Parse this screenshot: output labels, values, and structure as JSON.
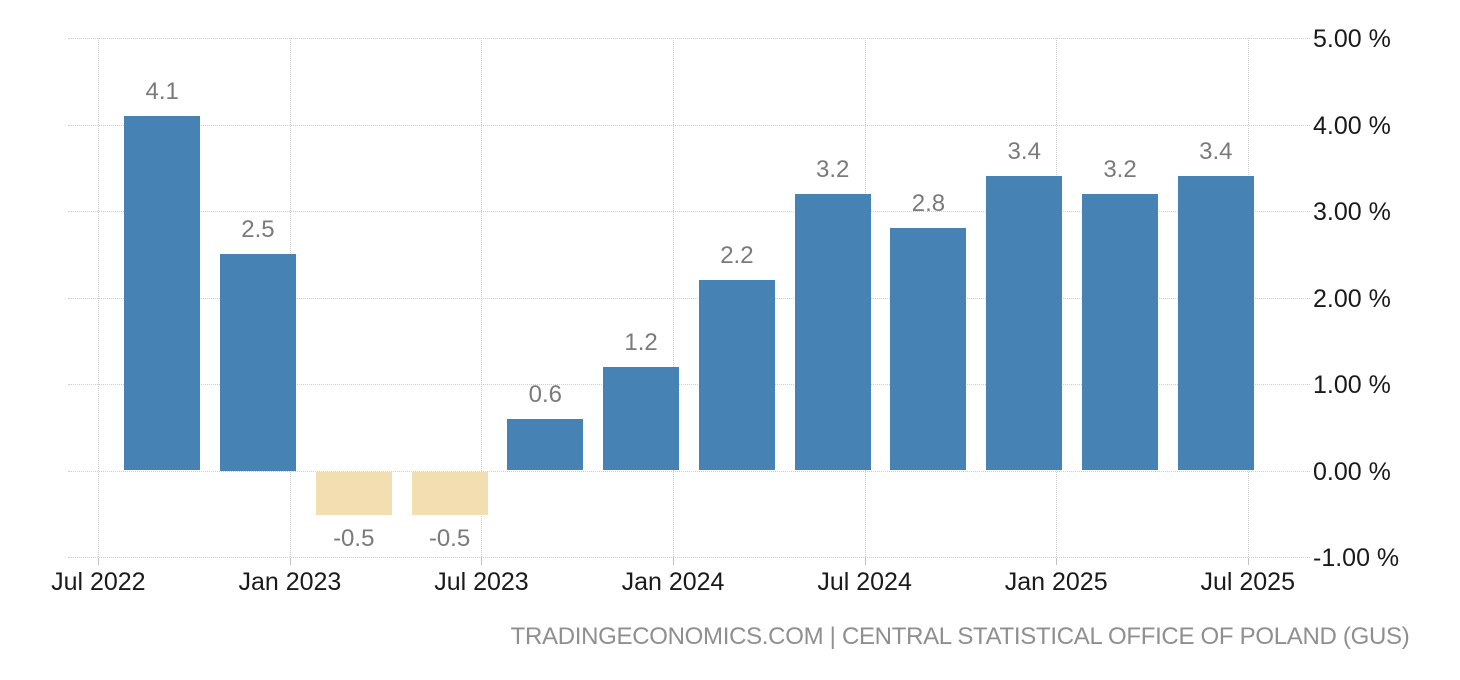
{
  "chart_data": {
    "type": "bar",
    "title": "",
    "legend": "none",
    "grid": "dotted",
    "x_axis": {
      "unit": "months_since_first_tick",
      "range": [
        -0.95,
        37.95
      ],
      "ticks": [
        {
          "m": 0,
          "label": "Jul 2022"
        },
        {
          "m": 6,
          "label": "Jan 2023"
        },
        {
          "m": 12,
          "label": "Jul 2023"
        },
        {
          "m": 18,
          "label": "Jan 2024"
        },
        {
          "m": 24,
          "label": "Jul 2024"
        },
        {
          "m": 30,
          "label": "Jan 2025"
        },
        {
          "m": 36,
          "label": "Jul 2025"
        }
      ]
    },
    "y_axis": {
      "range": [
        -1,
        5
      ],
      "ticks": [
        {
          "v": 5,
          "label": "5.00 %"
        },
        {
          "v": 4,
          "label": "4.00 %"
        },
        {
          "v": 3,
          "label": "3.00 %"
        },
        {
          "v": 2,
          "label": "2.00 %"
        },
        {
          "v": 1,
          "label": "1.00 %"
        },
        {
          "v": 0,
          "label": "0.00 %"
        },
        {
          "v": -1,
          "label": "-1.00 %"
        }
      ]
    },
    "bars": [
      {
        "m": 2,
        "value": 4.1,
        "label": "4.1"
      },
      {
        "m": 5,
        "value": 2.5,
        "label": "2.5"
      },
      {
        "m": 8,
        "value": -0.5,
        "label": "-0.5"
      },
      {
        "m": 11,
        "value": -0.5,
        "label": "-0.5"
      },
      {
        "m": 14,
        "value": 0.6,
        "label": "0.6"
      },
      {
        "m": 17,
        "value": 1.2,
        "label": "1.2"
      },
      {
        "m": 20,
        "value": 2.2,
        "label": "2.2"
      },
      {
        "m": 23,
        "value": 3.2,
        "label": "3.2"
      },
      {
        "m": 26,
        "value": 2.8,
        "label": "2.8"
      },
      {
        "m": 29,
        "value": 3.4,
        "label": "3.4"
      },
      {
        "m": 32,
        "value": 3.2,
        "label": "3.2"
      },
      {
        "m": 35,
        "value": 3.4,
        "label": "3.4"
      }
    ],
    "colors": {
      "positive_bar": "#4682b4",
      "negative_bar": "#f2deb0",
      "value_label": "#7a7a7a",
      "axis_label": "#1a1a1a",
      "gridline": "#cccccc"
    }
  },
  "footer": {
    "attribution": "TRADINGECONOMICS.COM | CENTRAL STATISTICAL OFFICE OF POLAND (GUS)"
  }
}
